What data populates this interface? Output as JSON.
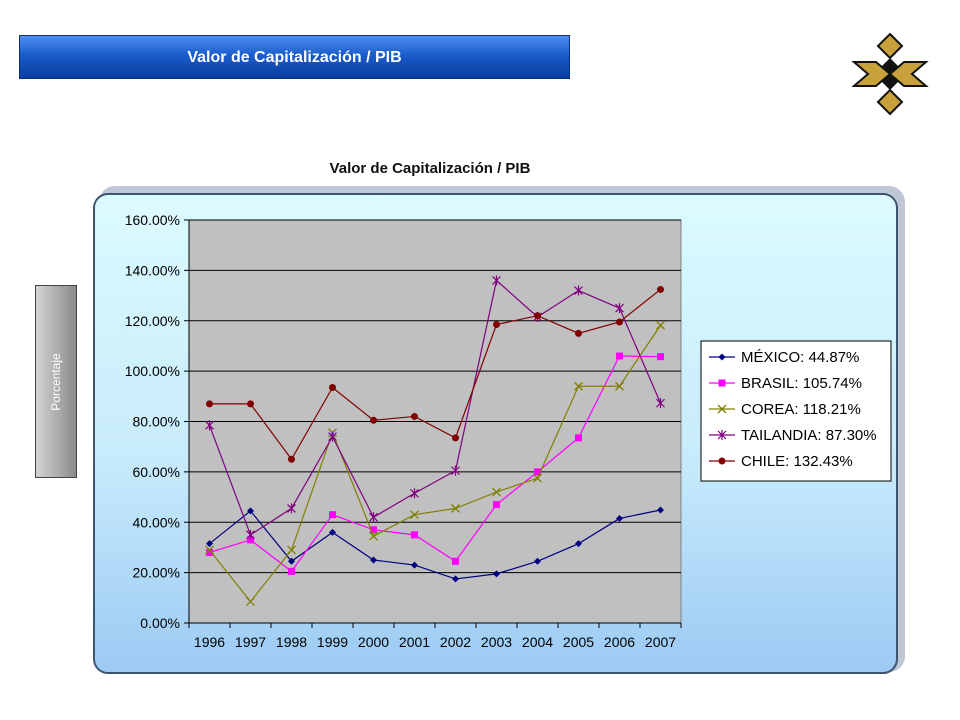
{
  "header": {
    "title": "Valor de Capitalización  / PIB"
  },
  "logo": {
    "icon": "stacked-chevrons-logo-icon",
    "colors": [
      "#c8a13a",
      "#111111"
    ]
  },
  "ylabel_box": {
    "text": "Porcentaje"
  },
  "chart_data": {
    "type": "line",
    "title": "Valor de Capitalización / PIB",
    "xlabel": "",
    "ylabel": "Porcentaje",
    "categories": [
      "1996",
      "1997",
      "1998",
      "1999",
      "2000",
      "2001",
      "2002",
      "2003",
      "2004",
      "2005",
      "2006",
      "2007"
    ],
    "ylim": [
      0,
      160
    ],
    "yticks": [
      "0.00%",
      "20.00%",
      "40.00%",
      "60.00%",
      "80.00%",
      "100.00%",
      "120.00%",
      "140.00%",
      "160.00%"
    ],
    "grid": true,
    "legend_position": "right",
    "series": [
      {
        "name": "MÉXICO: 44.87%",
        "color": "#000080",
        "marker": "diamond",
        "values": [
          31.5,
          44.5,
          24.5,
          36,
          25,
          23,
          17.5,
          19.5,
          24.5,
          31.5,
          41.5,
          44.87
        ]
      },
      {
        "name": "BRASIL: 105.74%",
        "color": "#ff00ff",
        "marker": "square",
        "values": [
          28,
          33,
          20.5,
          43,
          37,
          35,
          24.5,
          47,
          60,
          73.5,
          106,
          105.74
        ]
      },
      {
        "name": "COREA: 118.21%",
        "color": "#808000",
        "marker": "x",
        "values": [
          29,
          8.5,
          29,
          75.5,
          34.5,
          43,
          45.5,
          52,
          57.5,
          94,
          94,
          118.21
        ]
      },
      {
        "name": "TAILANDIA: 87.30%",
        "color": "#800080",
        "marker": "star",
        "values": [
          78.5,
          35,
          45.5,
          74,
          42,
          51.5,
          60.5,
          136,
          121.5,
          132,
          125,
          87.3
        ]
      },
      {
        "name": "CHILE: 132.43%",
        "color": "#800000",
        "marker": "circle",
        "values": [
          87,
          87,
          65,
          93.5,
          80.5,
          82,
          73.5,
          118.5,
          122,
          115,
          119.5,
          132.43
        ]
      }
    ]
  }
}
